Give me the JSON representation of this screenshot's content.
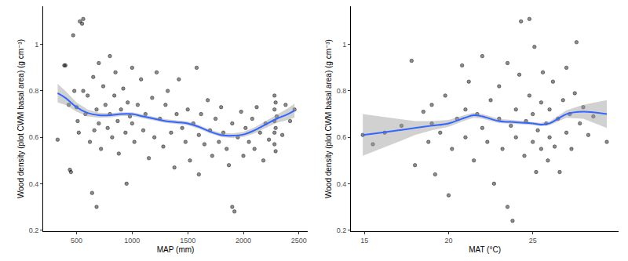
{
  "chart_data": [
    {
      "type": "scatter",
      "xlabel": "MAP (mm)",
      "ylabel": "Wood density (plot CWM basal area) (g cm⁻³)",
      "xlim": [
        200,
        2580
      ],
      "ylim": [
        0.195,
        1.165
      ],
      "xticks": [
        500,
        1000,
        1500,
        2000,
        2500
      ],
      "yticks": [
        0.2,
        0.4,
        0.6,
        0.8,
        1.0
      ],
      "grid": false,
      "points": {
        "color": "#000000",
        "marker": "circle",
        "x": [
          330,
          390,
          400,
          430,
          440,
          450,
          470,
          480,
          500,
          510,
          520,
          530,
          550,
          560,
          560,
          580,
          600,
          620,
          640,
          650,
          660,
          680,
          680,
          700,
          700,
          720,
          740,
          760,
          780,
          800,
          800,
          820,
          840,
          850,
          870,
          880,
          900,
          920,
          940,
          950,
          960,
          980,
          1000,
          1000,
          1020,
          1050,
          1080,
          1100,
          1120,
          1150,
          1180,
          1200,
          1220,
          1250,
          1280,
          1300,
          1320,
          1350,
          1380,
          1400,
          1420,
          1450,
          1480,
          1500,
          1520,
          1550,
          1580,
          1600,
          1600,
          1620,
          1650,
          1680,
          1700,
          1720,
          1750,
          1780,
          1800,
          1820,
          1850,
          1870,
          1900,
          1900,
          1920,
          1950,
          1980,
          2000,
          2020,
          2050,
          2080,
          2100,
          2120,
          2150,
          2180,
          2200,
          2230,
          2280,
          2280,
          2280,
          2280,
          2280,
          2290,
          2290,
          2290,
          2300,
          2350,
          2380,
          2420,
          2460
        ],
        "values": [
          0.59,
          0.91,
          0.91,
          0.74,
          0.46,
          0.45,
          1.04,
          0.8,
          0.73,
          0.67,
          0.62,
          1.1,
          1.09,
          1.11,
          0.8,
          0.7,
          0.78,
          0.58,
          0.36,
          0.86,
          0.63,
          0.3,
          0.72,
          0.92,
          0.66,
          0.55,
          0.82,
          0.74,
          0.64,
          0.95,
          0.7,
          0.6,
          0.78,
          0.88,
          0.67,
          0.53,
          0.72,
          0.81,
          0.62,
          0.4,
          0.75,
          0.69,
          0.9,
          0.66,
          0.58,
          0.74,
          0.85,
          0.63,
          0.7,
          0.51,
          0.77,
          0.6,
          0.88,
          0.68,
          0.56,
          0.74,
          0.8,
          0.62,
          0.47,
          0.7,
          0.85,
          0.64,
          0.58,
          0.72,
          0.5,
          0.66,
          0.9,
          0.61,
          0.44,
          0.7,
          0.57,
          0.76,
          0.63,
          0.52,
          0.68,
          0.58,
          0.73,
          0.62,
          0.55,
          0.48,
          0.3,
          0.66,
          0.28,
          0.6,
          0.71,
          0.52,
          0.64,
          0.58,
          0.68,
          0.55,
          0.73,
          0.62,
          0.5,
          0.66,
          0.59,
          0.78,
          0.72,
          0.67,
          0.62,
          0.57,
          0.75,
          0.64,
          0.54,
          0.69,
          0.61,
          0.74,
          0.67,
          0.72
        ]
      },
      "fit": {
        "color": "#3366FF",
        "line_style": "solid",
        "band_color": "#999999",
        "x": [
          330,
          400,
          500,
          600,
          700,
          800,
          900,
          1000,
          1100,
          1200,
          1300,
          1400,
          1500,
          1600,
          1700,
          1800,
          1900,
          2000,
          2100,
          2200,
          2300,
          2400,
          2460
        ],
        "values": [
          0.79,
          0.77,
          0.73,
          0.705,
          0.695,
          0.695,
          0.7,
          0.7,
          0.69,
          0.68,
          0.67,
          0.665,
          0.66,
          0.645,
          0.625,
          0.61,
          0.607,
          0.612,
          0.63,
          0.655,
          0.68,
          0.7,
          0.715
        ],
        "lower": [
          0.75,
          0.74,
          0.71,
          0.69,
          0.684,
          0.686,
          0.692,
          0.692,
          0.682,
          0.672,
          0.662,
          0.657,
          0.652,
          0.637,
          0.617,
          0.601,
          0.597,
          0.601,
          0.617,
          0.64,
          0.662,
          0.675,
          0.685
        ],
        "upper": [
          0.83,
          0.8,
          0.75,
          0.72,
          0.706,
          0.704,
          0.708,
          0.708,
          0.698,
          0.688,
          0.678,
          0.673,
          0.668,
          0.653,
          0.633,
          0.619,
          0.617,
          0.623,
          0.643,
          0.67,
          0.698,
          0.725,
          0.745
        ]
      }
    },
    {
      "type": "scatter",
      "xlabel": "MAT (°C)",
      "ylabel": "Wood density (plot CWM basal area) (g cm⁻³)",
      "xlim": [
        14.2,
        30.1
      ],
      "ylim": [
        0.195,
        1.165
      ],
      "xticks": [
        15,
        20,
        25
      ],
      "yticks": [
        0.2,
        0.4,
        0.6,
        0.8,
        1.0
      ],
      "grid": false,
      "points": {
        "color": "#000000",
        "marker": "circle",
        "x": [
          14.9,
          15.5,
          16.2,
          17.2,
          17.8,
          18,
          18.5,
          18.8,
          19,
          19,
          19.2,
          19.5,
          19.8,
          20,
          20.2,
          20.5,
          20.8,
          21,
          21,
          21.2,
          21.5,
          21.7,
          22,
          22,
          22.3,
          22.5,
          22.7,
          23,
          23,
          23.2,
          23.5,
          23.5,
          23.7,
          23.8,
          24,
          24,
          24.2,
          24.3,
          24.5,
          24.6,
          24.8,
          24.8,
          25,
          25,
          25.1,
          25.2,
          25.3,
          25.5,
          25.5,
          25.6,
          25.8,
          25.9,
          26,
          26,
          26.2,
          26.3,
          26.5,
          26.6,
          26.8,
          27,
          27,
          27.2,
          27.3,
          27.5,
          27.6,
          27.8,
          28,
          28.3,
          28.6,
          29.4
        ],
        "values": [
          0.61,
          0.57,
          0.62,
          0.65,
          0.93,
          0.48,
          0.71,
          0.58,
          0.66,
          0.74,
          0.44,
          0.62,
          0.78,
          0.35,
          0.55,
          0.68,
          0.91,
          0.72,
          0.6,
          0.84,
          0.5,
          0.7,
          0.95,
          0.64,
          0.58,
          0.76,
          0.4,
          0.68,
          0.82,
          0.55,
          0.92,
          0.3,
          0.65,
          0.24,
          0.72,
          0.6,
          0.87,
          1.1,
          0.52,
          0.67,
          1.11,
          0.78,
          0.58,
          0.7,
          0.99,
          0.45,
          0.63,
          0.75,
          0.55,
          0.88,
          0.66,
          0.5,
          0.6,
          0.72,
          0.84,
          0.56,
          0.68,
          0.45,
          0.76,
          0.62,
          0.9,
          0.7,
          0.55,
          0.79,
          1.01,
          0.66,
          0.73,
          0.61,
          0.69,
          0.58
        ]
      },
      "fit": {
        "color": "#3366FF",
        "line_style": "solid",
        "band_color": "#999999",
        "x": [
          14.9,
          16,
          17,
          18,
          19,
          20,
          21,
          21.5,
          22,
          23,
          24,
          25,
          25.5,
          26,
          26.5,
          27,
          28,
          29.4
        ],
        "values": [
          0.61,
          0.62,
          0.63,
          0.64,
          0.65,
          0.66,
          0.685,
          0.695,
          0.69,
          0.67,
          0.665,
          0.66,
          0.655,
          0.66,
          0.68,
          0.7,
          0.71,
          0.7
        ],
        "lower": [
          0.52,
          0.55,
          0.58,
          0.61,
          0.63,
          0.645,
          0.673,
          0.684,
          0.68,
          0.661,
          0.657,
          0.653,
          0.648,
          0.652,
          0.668,
          0.684,
          0.68,
          0.64
        ],
        "upper": [
          0.7,
          0.69,
          0.68,
          0.67,
          0.67,
          0.675,
          0.697,
          0.706,
          0.7,
          0.679,
          0.673,
          0.667,
          0.662,
          0.668,
          0.692,
          0.716,
          0.74,
          0.76
        ]
      }
    }
  ]
}
